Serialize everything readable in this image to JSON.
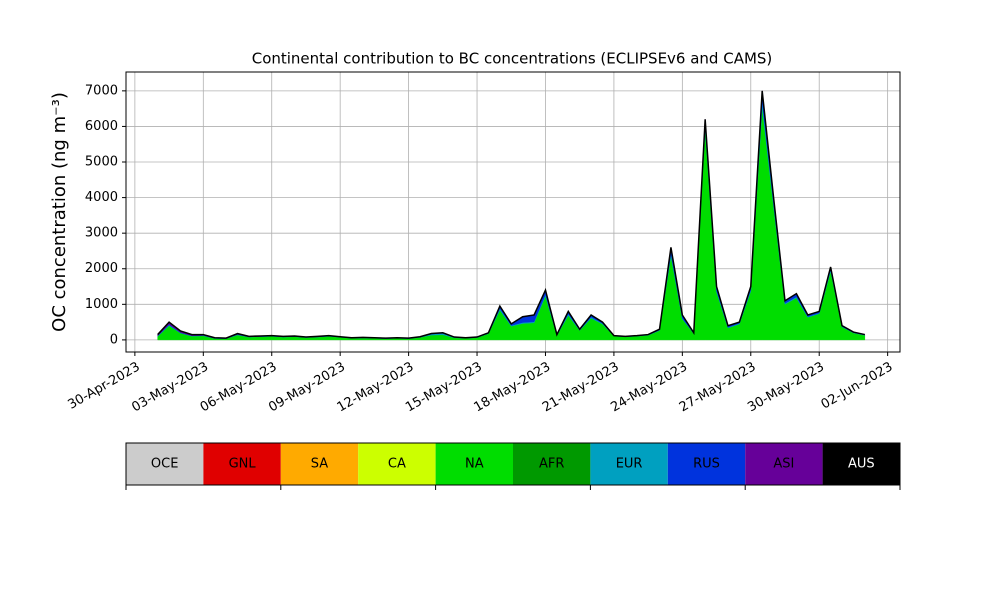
{
  "chart_data": {
    "type": "stacked_area",
    "title": "Continental contribution to BC concentrations (ECLIPSEv6 and CAMS)",
    "y_label": "OC concentration (ng m⁻³)",
    "x": [
      "2023-05-01T00:00",
      "2023-05-01T12:00",
      "2023-05-02T00:00",
      "2023-05-02T12:00",
      "2023-05-03T00:00",
      "2023-05-03T12:00",
      "2023-05-04T00:00",
      "2023-05-04T12:00",
      "2023-05-05T00:00",
      "2023-05-05T12:00",
      "2023-05-06T00:00",
      "2023-05-06T12:00",
      "2023-05-07T00:00",
      "2023-05-07T12:00",
      "2023-05-08T00:00",
      "2023-05-08T12:00",
      "2023-05-09T00:00",
      "2023-05-09T12:00",
      "2023-05-10T00:00",
      "2023-05-10T12:00",
      "2023-05-11T00:00",
      "2023-05-11T12:00",
      "2023-05-12T00:00",
      "2023-05-12T12:00",
      "2023-05-13T00:00",
      "2023-05-13T12:00",
      "2023-05-14T00:00",
      "2023-05-14T12:00",
      "2023-05-15T00:00",
      "2023-05-15T12:00",
      "2023-05-16T00:00",
      "2023-05-16T12:00",
      "2023-05-17T00:00",
      "2023-05-17T12:00",
      "2023-05-18T00:00",
      "2023-05-18T12:00",
      "2023-05-19T00:00",
      "2023-05-19T12:00",
      "2023-05-20T00:00",
      "2023-05-20T12:00",
      "2023-05-21T00:00",
      "2023-05-21T12:00",
      "2023-05-22T00:00",
      "2023-05-22T12:00",
      "2023-05-23T00:00",
      "2023-05-23T12:00",
      "2023-05-24T00:00",
      "2023-05-24T12:00",
      "2023-05-25T00:00",
      "2023-05-25T12:00",
      "2023-05-26T00:00",
      "2023-05-26T12:00",
      "2023-05-27T00:00",
      "2023-05-27T12:00",
      "2023-05-28T00:00",
      "2023-05-28T12:00",
      "2023-05-29T00:00",
      "2023-05-29T12:00",
      "2023-05-30T00:00",
      "2023-05-30T12:00",
      "2023-05-31T00:00",
      "2023-05-31T12:00",
      "2023-06-01T00:00"
    ],
    "series": [
      {
        "name": "NA",
        "color": "#00dd00",
        "values": [
          100,
          400,
          190,
          105,
          115,
          40,
          35,
          140,
          80,
          90,
          100,
          80,
          90,
          65,
          80,
          100,
          75,
          45,
          55,
          45,
          35,
          45,
          35,
          70,
          135,
          145,
          60,
          45,
          65,
          175,
          840,
          385,
          460,
          480,
          1230,
          125,
          690,
          265,
          610,
          445,
          105,
          85,
          105,
          130,
          265,
          2370,
          590,
          175,
          5920,
          1350,
          335,
          445,
          1370,
          6550,
          3750,
          1000,
          1180,
          635,
          735,
          1930,
          365,
          195,
          130
        ]
      },
      {
        "name": "EUR",
        "color": "#00a0c0",
        "values": [
          10,
          20,
          10,
          10,
          10,
          5,
          5,
          10,
          5,
          5,
          5,
          5,
          5,
          5,
          5,
          5,
          5,
          5,
          5,
          5,
          5,
          5,
          5,
          10,
          30,
          40,
          10,
          5,
          5,
          10,
          40,
          20,
          30,
          30,
          50,
          10,
          40,
          10,
          30,
          20,
          5,
          5,
          5,
          10,
          10,
          60,
          20,
          10,
          100,
          40,
          20,
          20,
          40,
          150,
          80,
          30,
          30,
          20,
          20,
          50,
          10,
          10,
          10
        ]
      },
      {
        "name": "RUS",
        "color": "#0033dd",
        "values": [
          10,
          20,
          10,
          5,
          5,
          5,
          5,
          10,
          5,
          5,
          5,
          5,
          5,
          5,
          5,
          5,
          5,
          5,
          5,
          5,
          5,
          5,
          5,
          5,
          10,
          10,
          5,
          5,
          5,
          10,
          60,
          40,
          150,
          180,
          100,
          10,
          60,
          20,
          50,
          30,
          5,
          5,
          5,
          5,
          20,
          150,
          80,
          10,
          150,
          100,
          40,
          30,
          80,
          250,
          150,
          60,
          80,
          40,
          40,
          60,
          20,
          10,
          5
        ]
      },
      {
        "name": "ASI",
        "color": "#660099",
        "values": [
          30,
          60,
          40,
          30,
          20,
          10,
          5,
          20,
          10,
          10,
          10,
          10,
          10,
          5,
          10,
          10,
          5,
          5,
          5,
          5,
          5,
          5,
          5,
          5,
          5,
          5,
          5,
          5,
          5,
          5,
          10,
          5,
          10,
          10,
          20,
          5,
          10,
          5,
          10,
          5,
          5,
          5,
          5,
          5,
          5,
          20,
          10,
          5,
          30,
          10,
          5,
          5,
          10,
          50,
          20,
          10,
          10,
          5,
          5,
          10,
          5,
          5,
          5
        ]
      }
    ],
    "xlim": [
      "2023-04-29T14:40",
      "2023-06-02T13:00"
    ],
    "xticks": [
      {
        "value": "2023-04-30",
        "label": "30-Apr-2023"
      },
      {
        "value": "2023-05-03",
        "label": "03-May-2023"
      },
      {
        "value": "2023-05-06",
        "label": "06-May-2023"
      },
      {
        "value": "2023-05-09",
        "label": "09-May-2023"
      },
      {
        "value": "2023-05-12",
        "label": "12-May-2023"
      },
      {
        "value": "2023-05-15",
        "label": "15-May-2023"
      },
      {
        "value": "2023-05-18",
        "label": "18-May-2023"
      },
      {
        "value": "2023-05-21",
        "label": "21-May-2023"
      },
      {
        "value": "2023-05-24",
        "label": "24-May-2023"
      },
      {
        "value": "2023-05-27",
        "label": "27-May-2023"
      },
      {
        "value": "2023-05-30",
        "label": "30-May-2023"
      },
      {
        "value": "2023-06-02",
        "label": "02-Jun-2023"
      }
    ],
    "ylim": [
      -340,
      7530
    ],
    "yticks": [
      0,
      1000,
      2000,
      3000,
      4000,
      5000,
      6000,
      7000
    ],
    "grid": true,
    "colorbar": {
      "labels": [
        "OCE",
        "GNL",
        "SA",
        "CA",
        "NA",
        "AFR",
        "EUR",
        "RUS",
        "ASI",
        "AUS"
      ],
      "colors": [
        "#cccccc",
        "#e00000",
        "#ffaa00",
        "#ccff00",
        "#00dd00",
        "#009900",
        "#00a0c0",
        "#0033dd",
        "#660099",
        "#000000"
      ]
    }
  }
}
